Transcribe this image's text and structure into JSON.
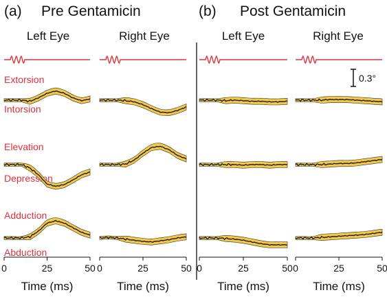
{
  "panels": [
    {
      "label": "(a)",
      "title": "Pre Gentamicin"
    },
    {
      "label": "(b)",
      "title": "Post Gentamicin"
    }
  ],
  "eyes": [
    "Left Eye",
    "Right Eye",
    "Left Eye",
    "Right Eye"
  ],
  "directions": [
    {
      "top": "Extorsion",
      "bottom": "Intorsion"
    },
    {
      "top": "Elevation",
      "bottom": "Depression"
    },
    {
      "top": "Adduction",
      "bottom": "Abduction"
    }
  ],
  "scale_bar": "0.3°",
  "colors": {
    "stimulus": "#e0303a",
    "trace": "#1a1a1a",
    "band": "#f2c84b",
    "direction_text": "#e0303a"
  },
  "chart_data": {
    "type": "line",
    "title": "",
    "xlabel": "Time (ms)",
    "ylabel": "",
    "xlim": [
      0,
      50
    ],
    "xticks": [
      0,
      25,
      50
    ],
    "x": [
      0,
      5,
      10,
      15,
      20,
      25,
      30,
      35,
      40,
      45,
      50
    ],
    "scale_bar_deg": 0.3,
    "panels": [
      {
        "condition": "Pre Gentamicin",
        "eye": "Left Eye",
        "torsion": [
          0,
          0,
          0,
          -0.02,
          0.04,
          0.12,
          0.16,
          0.12,
          0.04,
          -0.01,
          0.02
        ],
        "vertical": [
          0,
          0,
          0,
          -0.06,
          -0.18,
          -0.34,
          -0.38,
          -0.35,
          -0.27,
          -0.18,
          -0.13
        ],
        "horizontal": [
          0,
          0,
          0,
          0.02,
          0.12,
          0.26,
          0.3,
          0.26,
          0.18,
          0.1,
          0.05
        ]
      },
      {
        "condition": "Pre Gentamicin",
        "eye": "Right Eye",
        "torsion": [
          0,
          0,
          0,
          -0.01,
          -0.03,
          -0.08,
          -0.15,
          -0.21,
          -0.22,
          -0.18,
          -0.12
        ],
        "vertical": [
          0,
          0,
          0,
          0.01,
          0.08,
          0.2,
          0.3,
          0.32,
          0.26,
          0.16,
          0.1
        ],
        "horizontal": [
          0,
          0.01,
          0,
          -0.02,
          -0.04,
          -0.06,
          -0.07,
          -0.05,
          -0.03,
          0,
          0.02
        ]
      },
      {
        "condition": "Post Gentamicin",
        "eye": "Left Eye",
        "torsion": [
          0,
          0,
          0,
          -0.01,
          0,
          -0.01,
          -0.02,
          -0.02,
          -0.03,
          -0.03,
          -0.02
        ],
        "vertical": [
          0,
          0,
          0,
          0,
          0,
          -0.01,
          0,
          0,
          -0.01,
          0,
          0
        ],
        "horizontal": [
          0,
          0,
          0,
          -0.01,
          -0.02,
          -0.04,
          -0.07,
          -0.1,
          -0.12,
          -0.12,
          -0.12
        ]
      },
      {
        "condition": "Post Gentamicin",
        "eye": "Right Eye",
        "torsion": [
          0,
          0,
          0,
          0,
          0.01,
          0.01,
          0.01,
          0,
          -0.01,
          -0.02,
          -0.03
        ],
        "vertical": [
          0,
          0,
          0,
          0,
          0.01,
          0.02,
          0.02,
          0.03,
          0.05,
          0.07,
          0.09
        ],
        "horizontal": [
          0,
          0,
          0,
          0.01,
          0.02,
          0.03,
          0.04,
          0.05,
          0.06,
          0.08,
          0.1
        ]
      }
    ]
  }
}
